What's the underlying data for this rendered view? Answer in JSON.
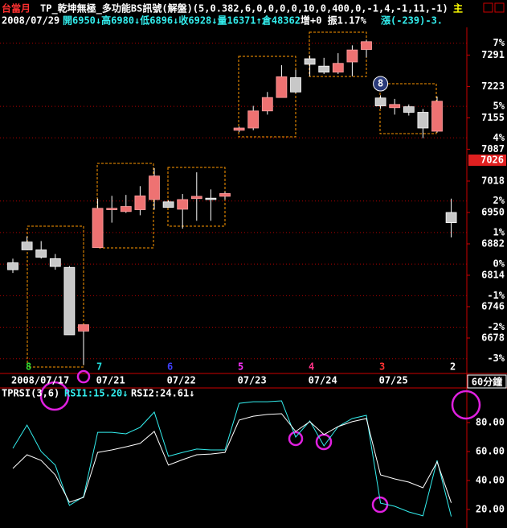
{
  "header": {
    "symbol": "台當月",
    "indicator": "TP_乾坤無極_多功能BS訊號(解盤)(5,0.382,6,0,0,0,0,10,0,400,0,-1,4,-1,11,-1)",
    "indicator_more": "主",
    "date": "2008/07/29",
    "quote": "開6950↓高6980↓低6896↓收6928↓量16371↑倉48362",
    "change_info": "增+0 振1.17%",
    "change": "漲(-239)-3."
  },
  "timeframe": "60分鐘",
  "chart_data": [
    {
      "type": "candlestick",
      "categories": [
        "2008/07/17",
        null,
        null,
        null,
        null,
        null,
        "07/21",
        null,
        null,
        null,
        null,
        "07/22",
        null,
        null,
        null,
        null,
        "07/23",
        null,
        null,
        null,
        null,
        "07/24",
        null,
        null,
        null,
        null,
        "07/25",
        null,
        null,
        null,
        null,
        null
      ],
      "open": [
        6841,
        6886,
        6869,
        6850,
        6831,
        6693,
        6874,
        6956,
        6952,
        6956,
        6978,
        6973,
        6957,
        6980,
        6981,
        6985,
        7128,
        7133,
        7170,
        7199,
        7242,
        7283,
        7267,
        7254,
        7276,
        7303,
        7198,
        7177,
        7179,
        7167,
        7126,
        6950
      ],
      "high": [
        6850,
        6898,
        6888,
        6860,
        6834,
        6707,
        6980,
        6986,
        6988,
        7007,
        7046,
        6976,
        6990,
        7037,
        7000,
        6995,
        7136,
        7181,
        7211,
        7269,
        7259,
        7290,
        7285,
        7295,
        7312,
        7324,
        7204,
        7196,
        7184,
        7174,
        7201,
        6980
      ],
      "low": [
        6819,
        6869,
        6850,
        6826,
        6685,
        6620,
        6874,
        6928,
        6949,
        6944,
        6956,
        6961,
        6915,
        6932,
        6932,
        6978,
        7124,
        7128,
        7162,
        7199,
        7208,
        7245,
        7250,
        7250,
        7245,
        7286,
        7175,
        7162,
        7160,
        7111,
        7123,
        6896
      ],
      "close": [
        6826,
        6869,
        6853,
        6833,
        6685,
        6707,
        6959,
        6959,
        6963,
        6986,
        7029,
        6961,
        6978,
        6985,
        6978,
        6991,
        7133,
        7170,
        7199,
        7244,
        7211,
        7271,
        7254,
        7273,
        7302,
        7320,
        7181,
        7184,
        7167,
        7133,
        7191,
        6928
      ],
      "up_color": "#ee7272",
      "down_color": "#c8c8c8",
      "ylim": [
        6603,
        7344
      ],
      "yticks": [
        7291,
        7223,
        7155,
        7087,
        7018,
        6950,
        6882,
        6814,
        6746,
        6678
      ],
      "y2lim": [
        -3.44,
        7.4
      ],
      "y2ticks": [
        {
          "value": 7,
          "label": "7%"
        },
        {
          "value": 5,
          "label": "5%"
        },
        {
          "value": 4,
          "label": "4%"
        },
        {
          "value": 2,
          "label": "2%"
        },
        {
          "value": 1,
          "label": "1%"
        },
        {
          "value": 0,
          "label": "0%"
        },
        {
          "value": -1,
          "label": "-1%"
        },
        {
          "value": -2,
          "label": "-2%"
        },
        {
          "value": -3,
          "label": "-3%"
        }
      ],
      "grid": true,
      "signal_counts": [
        null,
        8,
        null,
        null,
        null,
        null,
        7,
        null,
        null,
        null,
        null,
        6,
        null,
        null,
        null,
        null,
        5,
        null,
        null,
        null,
        null,
        4,
        null,
        null,
        null,
        null,
        3,
        null,
        null,
        null,
        null,
        2
      ],
      "signal_colors": [
        null,
        "#33dd33",
        null,
        null,
        null,
        null,
        "#22dddd",
        null,
        null,
        null,
        null,
        "#4040ff",
        null,
        null,
        null,
        null,
        "#ff33ff",
        null,
        null,
        null,
        null,
        "#ff3388",
        null,
        null,
        null,
        null,
        "#ff3333",
        null,
        null,
        null,
        null,
        "#ffffff"
      ],
      "badge": 8,
      "last_price": 7026
    },
    {
      "type": "line",
      "title": "TPRSI(3,6)",
      "series": [
        {
          "name": "RSI1:15.20↓",
          "color": "#33eeee",
          "values": [
            62.2,
            78.3,
            60.0,
            50.6,
            22.8,
            28.9,
            73.3,
            73.3,
            72.2,
            76.7,
            87.2,
            56.7,
            59.4,
            61.7,
            61.1,
            61.1,
            93.3,
            94.4,
            94.4,
            95.0,
            70.0,
            81.1,
            63.9,
            77.2,
            82.8,
            85.0,
            24.4,
            22.2,
            18.3,
            15.6,
            53.9,
            15.2
          ]
        },
        {
          "name": "RSI2:24.61↓",
          "color": "#ffffff",
          "values": [
            48.3,
            57.8,
            53.9,
            43.9,
            25.0,
            28.3,
            59.4,
            61.1,
            63.3,
            65.6,
            73.9,
            50.6,
            54.4,
            57.8,
            58.3,
            59.4,
            81.7,
            84.4,
            85.6,
            86.1,
            73.9,
            80.6,
            71.7,
            77.2,
            80.6,
            82.8,
            43.9,
            41.1,
            38.9,
            35.0,
            52.8,
            24.61
          ]
        }
      ],
      "ylim": [
        7.2,
        103.9
      ],
      "yticks": [
        {
          "value": 80,
          "label": "80.00"
        },
        {
          "value": 60,
          "label": "60.00"
        },
        {
          "value": 40,
          "label": "40.00"
        },
        {
          "value": 20,
          "label": "20.00"
        }
      ]
    }
  ]
}
